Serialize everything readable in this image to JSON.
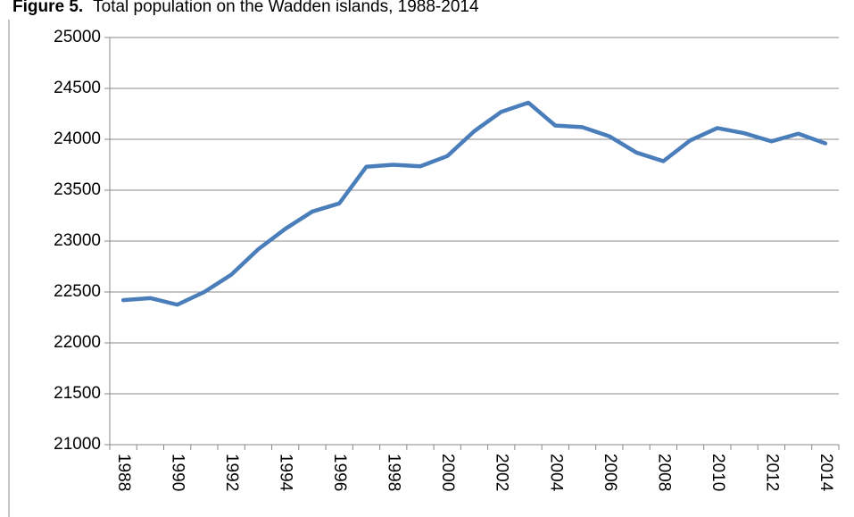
{
  "chart_data": {
    "type": "line",
    "title_prefix": "Figure 5.",
    "title": "Total population on the Wadden islands, 1988-2014",
    "categories": [
      "1988",
      null,
      "1990",
      null,
      "1992",
      null,
      "1994",
      null,
      "1996",
      null,
      "1998",
      null,
      "2000",
      null,
      "2002",
      null,
      "2004",
      null,
      "2006",
      null,
      "2008",
      null,
      "2010",
      null,
      "2012",
      null,
      "2014"
    ],
    "series": [
      {
        "name": "Total population",
        "color": "#4a7ebb",
        "values": [
          22420,
          22440,
          22375,
          22500,
          22670,
          22920,
          23120,
          23290,
          23370,
          23730,
          23750,
          23735,
          23835,
          24080,
          24270,
          24360,
          24135,
          24120,
          24030,
          23870,
          23785,
          23990,
          24110,
          24060,
          23980,
          24055,
          23960
        ]
      }
    ],
    "ylim": [
      21000,
      25000
    ],
    "yticks": [
      21000,
      21500,
      22000,
      22500,
      23000,
      23500,
      24000,
      24500,
      25000
    ],
    "grid": true
  }
}
